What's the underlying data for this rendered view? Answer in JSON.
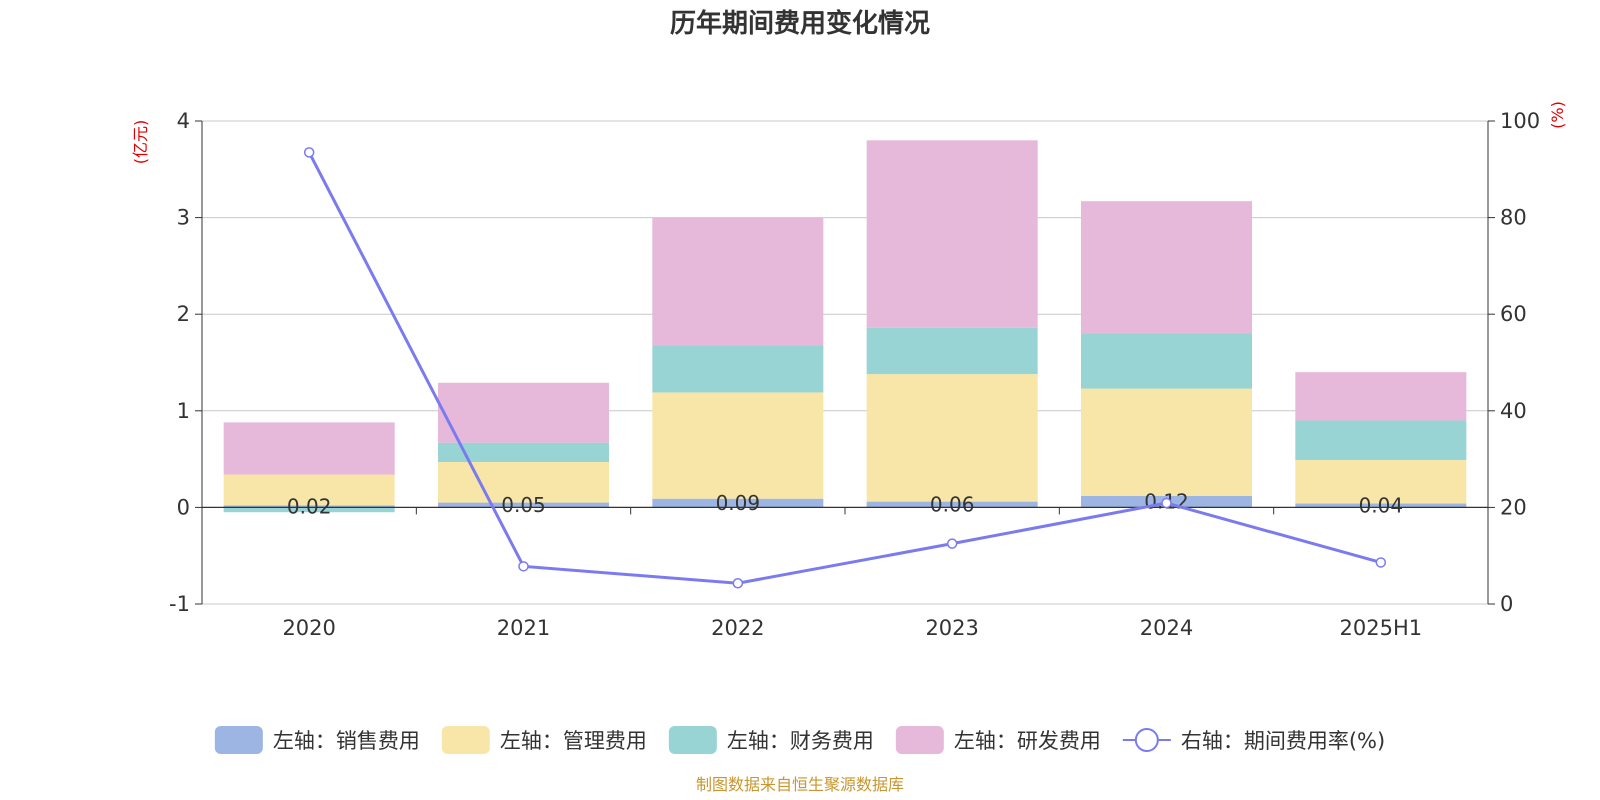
{
  "chart_data": {
    "type": "bar",
    "title": "历年期间费用变化情况",
    "categories": [
      "2020",
      "2021",
      "2022",
      "2023",
      "2024",
      "2025H1"
    ],
    "stacked": true,
    "series": [
      {
        "name": "左轴：销售费用",
        "axis": "left",
        "type": "bar",
        "color": "#9db5e2",
        "values": [
          0.02,
          0.05,
          0.09,
          0.06,
          0.12,
          0.04
        ],
        "labels": [
          "0.02",
          "0.05",
          "0.09",
          "0.06",
          "0.12",
          "0.04"
        ]
      },
      {
        "name": "左轴：管理费用",
        "axis": "left",
        "type": "bar",
        "color": "#f8e6a8",
        "values": [
          0.32,
          0.42,
          1.1,
          1.32,
          1.11,
          0.45
        ]
      },
      {
        "name": "左轴：财务费用",
        "axis": "left",
        "type": "bar",
        "color": "#98d4d4",
        "values": [
          -0.05,
          0.2,
          0.49,
          0.48,
          0.57,
          0.41
        ]
      },
      {
        "name": "左轴：研发费用",
        "axis": "left",
        "type": "bar",
        "color": "#e6b8d9",
        "values": [
          0.54,
          0.62,
          1.32,
          1.94,
          1.37,
          0.5
        ]
      },
      {
        "name": "右轴：期间费用率(%)",
        "axis": "right",
        "type": "line",
        "color": "#7b7bef",
        "values": [
          93.5,
          7.8,
          4.3,
          12.5,
          20.9,
          8.6
        ]
      }
    ],
    "y_left": {
      "label": "(亿元)",
      "min": -1,
      "max": 4,
      "ticks": [
        -1,
        0,
        1,
        2,
        3,
        4
      ]
    },
    "y_right": {
      "label": "(%)",
      "min": 0,
      "max": 100,
      "ticks": [
        0,
        20,
        40,
        60,
        80,
        100
      ]
    },
    "grid": true,
    "legend_position": "bottom"
  },
  "source": "制图数据来自恒生聚源数据库"
}
